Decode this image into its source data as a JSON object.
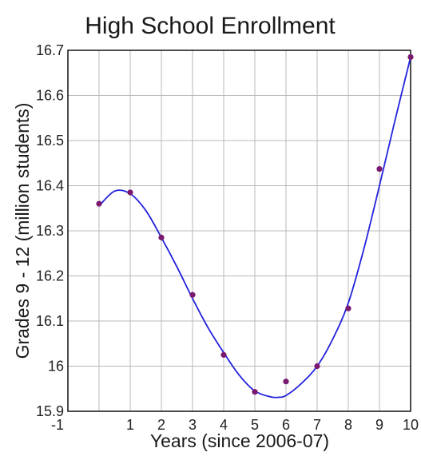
{
  "chart_data": {
    "type": "scatter",
    "title": "High School Enrollment",
    "xlabel": "Years (since 2006-07)",
    "ylabel": "Grades 9 - 12 (million students)",
    "xlim": [
      -1,
      10
    ],
    "ylim": [
      15.9,
      16.7
    ],
    "grid": true,
    "x_tick_labels": [
      "-1",
      "1",
      "2",
      "3",
      "4",
      "5",
      "6",
      "7",
      "8",
      "9",
      "10"
    ],
    "x_tick_values": [
      -1,
      1,
      2,
      3,
      4,
      5,
      6,
      7,
      8,
      9,
      10
    ],
    "y_tick_labels": [
      "15.9",
      "16",
      "16.1",
      "16.2",
      "16.3",
      "16.4",
      "16.5",
      "16.6",
      "16.7"
    ],
    "y_tick_values": [
      15.9,
      16.0,
      16.1,
      16.2,
      16.3,
      16.4,
      16.5,
      16.6,
      16.7
    ],
    "series": [
      {
        "kind": "points",
        "color": "#7a1a6e",
        "points": [
          {
            "x": 0,
            "y": 16.36
          },
          {
            "x": 1,
            "y": 16.385
          },
          {
            "x": 2,
            "y": 16.285
          },
          {
            "x": 3,
            "y": 16.158
          },
          {
            "x": 4,
            "y": 16.025
          },
          {
            "x": 5,
            "y": 15.943
          },
          {
            "x": 6,
            "y": 15.966
          },
          {
            "x": 7,
            "y": 16.0
          },
          {
            "x": 8,
            "y": 16.128
          },
          {
            "x": 9,
            "y": 16.437
          },
          {
            "x": 10,
            "y": 16.685
          }
        ]
      },
      {
        "kind": "curve",
        "color": "#2222dd",
        "points": [
          {
            "x": 0,
            "y": 16.355
          },
          {
            "x": 0.5,
            "y": 16.388
          },
          {
            "x": 1,
            "y": 16.382
          },
          {
            "x": 1.5,
            "y": 16.345
          },
          {
            "x": 2,
            "y": 16.285
          },
          {
            "x": 2.5,
            "y": 16.22
          },
          {
            "x": 3,
            "y": 16.15
          },
          {
            "x": 3.5,
            "y": 16.085
          },
          {
            "x": 4,
            "y": 16.03
          },
          {
            "x": 4.5,
            "y": 15.98
          },
          {
            "x": 5,
            "y": 15.945
          },
          {
            "x": 5.5,
            "y": 15.932
          },
          {
            "x": 5.75,
            "y": 15.931
          },
          {
            "x": 6,
            "y": 15.935
          },
          {
            "x": 6.5,
            "y": 15.962
          },
          {
            "x": 7,
            "y": 16.0
          },
          {
            "x": 7.5,
            "y": 16.06
          },
          {
            "x": 8,
            "y": 16.14
          },
          {
            "x": 8.5,
            "y": 16.26
          },
          {
            "x": 9,
            "y": 16.4
          },
          {
            "x": 9.5,
            "y": 16.545
          },
          {
            "x": 10,
            "y": 16.685
          }
        ]
      }
    ]
  }
}
